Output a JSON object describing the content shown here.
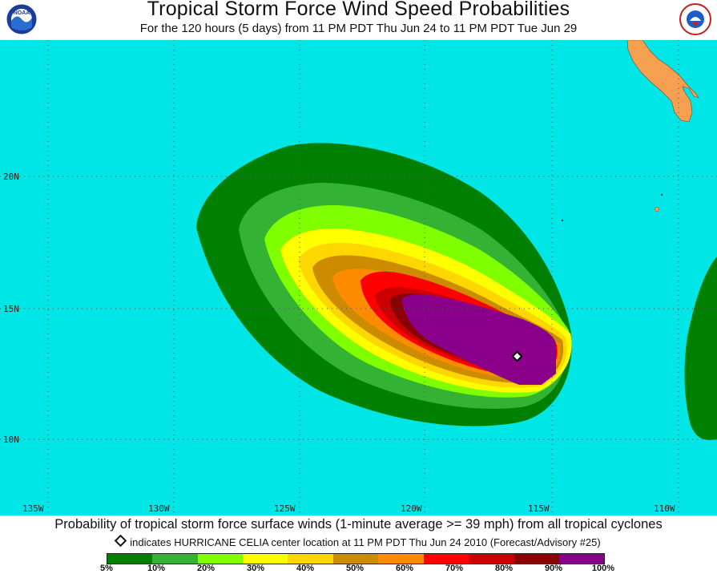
{
  "header": {
    "title": "Tropical Storm Force Wind Speed Probabilities",
    "subtitle": "For the 120 hours (5 days) from 11 PM PDT Thu Jun 24 to 11 PM PDT Tue Jun 29"
  },
  "logos": {
    "left": "noaa-logo-icon",
    "right": "national-weather-service-logo-icon"
  },
  "map": {
    "ocean_color": "#00e5e5",
    "land_color": "#f5a050",
    "longitude_labels": [
      "135W",
      "130W",
      "125W",
      "120W",
      "115W",
      "110W"
    ],
    "latitude_labels": [
      "20N",
      "15N",
      "10N"
    ],
    "storm_center_marker": "diamond-marker-icon",
    "probability_colors": {
      "5": "#008000",
      "10": "#33b233",
      "20": "#7fff00",
      "30": "#ffff00",
      "40": "#ffd700",
      "50": "#cd8c00",
      "60": "#ff8c00",
      "70": "#ff0000",
      "80": "#cc0000",
      "90": "#8b0000",
      "100": "#8b008b"
    }
  },
  "footer": {
    "description": "Probability of tropical storm force surface winds (1-minute average >= 39 mph) from all tropical cyclones",
    "center_note": "indicates HURRICANE CELIA center location at 11 PM PDT Thu Jun 24 2010 (Forecast/Advisory #25)"
  },
  "legend": {
    "colors": [
      "#008000",
      "#33b233",
      "#7fff00",
      "#ffff00",
      "#ffd700",
      "#cd8c00",
      "#ff8c00",
      "#ff0000",
      "#cc0000",
      "#8b0000",
      "#8b008b"
    ],
    "labels": [
      "5%",
      "10%",
      "20%",
      "30%",
      "40%",
      "50%",
      "60%",
      "70%",
      "80%",
      "90%",
      "100%"
    ]
  }
}
